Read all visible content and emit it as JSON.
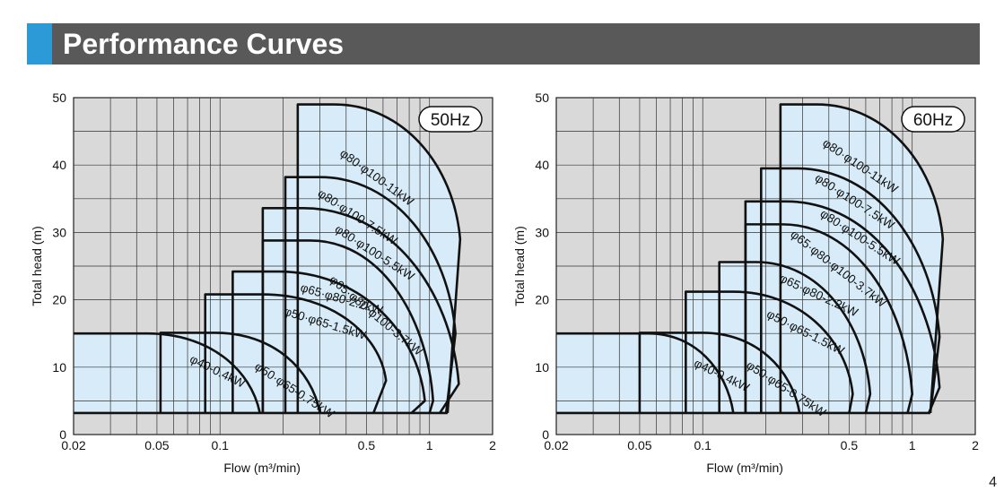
{
  "header": {
    "title": "Performance Curves"
  },
  "colors": {
    "plot_bg": "#d9d9d9",
    "region_fill": "#d7ecf8",
    "curve": "#111111",
    "accent": "#2b9ad6",
    "title_bar": "#595959"
  },
  "page_number": "4",
  "chart_data": [
    {
      "type": "area",
      "freq_label": "50Hz",
      "xlabel": "Flow (m³/min)",
      "ylabel": "Total head (m)",
      "x_scale": "log",
      "xlim": [
        0.02,
        2
      ],
      "ylim": [
        0,
        50
      ],
      "x_ticks": [
        0.02,
        0.05,
        0.1,
        0.5,
        1,
        2
      ],
      "x_tick_labels": [
        "0.02",
        "0.05",
        "0.1",
        "0.5",
        "1",
        "2"
      ],
      "y_ticks": [
        0,
        10,
        20,
        30,
        40,
        50
      ],
      "grid": true,
      "min_head": 3.2,
      "series": [
        {
          "name": "φ40-0.4kW",
          "label_pos": [
            0.071,
            10.8
          ],
          "label_rot": 26,
          "x_start": 0.02,
          "x_vert": null,
          "h_top": 15.0,
          "x_q": 0.045,
          "x_end": 0.155,
          "shape": "arc",
          "kink": null
        },
        {
          "name": "φ50·φ65-0.75kW",
          "label_pos": [
            0.145,
            9.8
          ],
          "label_rot": 33,
          "x_start": 0.052,
          "x_vert": 0.052,
          "h_top": 15.1,
          "x_q": 0.095,
          "x_end": 0.3,
          "shape": "arc",
          "kink": null
        },
        {
          "name": "φ50·φ65-1.5kW",
          "label_pos": [
            0.2,
            17.8
          ],
          "label_rot": 17,
          "x_start": 0.085,
          "x_vert": 0.085,
          "h_top": 20.8,
          "x_q": 0.16,
          "x_end": 0.54,
          "shape": "kink",
          "kink": [
            0.62,
            8.0
          ]
        },
        {
          "name": "φ65·φ80-2.2kW",
          "label_pos": [
            0.24,
            21.3
          ],
          "label_rot": 16,
          "x_start": 0.115,
          "x_vert": 0.115,
          "h_top": 24.2,
          "x_q": 0.19,
          "x_end": 0.82,
          "shape": "kink",
          "kink": [
            0.95,
            5.0
          ]
        },
        {
          "name": "φ65·φ80·φ100-3.7kW",
          "label_pos": [
            0.33,
            22.8
          ],
          "label_rot": 40,
          "x_start": 0.16,
          "x_vert": 0.16,
          "h_top": 28.8,
          "x_q": 0.27,
          "x_end": 1.0,
          "shape": "kink",
          "kink": [
            1.04,
            5.0
          ]
        },
        {
          "name": "φ80·φ100-5.5kW",
          "label_pos": [
            0.35,
            30.2
          ],
          "label_rot": 33,
          "x_start": 0.16,
          "x_vert": 0.16,
          "h_top": 33.6,
          "x_q": 0.25,
          "x_end": 1.12,
          "shape": "notch",
          "kink": [
            1.38,
            7.5
          ]
        },
        {
          "name": "φ80·φ100-7.5kW",
          "label_pos": [
            0.29,
            35.5
          ],
          "label_rot": 33,
          "x_start": 0.205,
          "x_vert": 0.205,
          "h_top": 38.2,
          "x_q": 0.3,
          "x_end": 1.2,
          "shape": "notch",
          "kink": [
            1.33,
            15.0
          ]
        },
        {
          "name": "φ80·φ100-11kW",
          "label_pos": [
            0.37,
            41.5
          ],
          "label_rot": 36,
          "x_start": 0.235,
          "x_vert": 0.235,
          "h_top": 49.0,
          "x_q": 0.35,
          "x_end": 1.22,
          "shape": "notch",
          "kink": [
            1.4,
            29.0
          ]
        }
      ]
    },
    {
      "type": "area",
      "freq_label": "60Hz",
      "xlabel": "Flow (m³/min)",
      "ylabel": "Total head (m)",
      "x_scale": "log",
      "xlim": [
        0.02,
        2
      ],
      "ylim": [
        0,
        50
      ],
      "x_ticks": [
        0.02,
        0.05,
        0.1,
        0.5,
        1,
        2
      ],
      "x_tick_labels": [
        "0.02",
        "0.05",
        "0.1",
        "0.5",
        "1",
        "2"
      ],
      "y_ticks": [
        0,
        10,
        20,
        30,
        40,
        50
      ],
      "grid": true,
      "min_head": 3.2,
      "series": [
        {
          "name": "φ40-0.4kW",
          "label_pos": [
            0.09,
            10.2
          ],
          "label_rot": 26,
          "x_start": 0.02,
          "x_vert": null,
          "h_top": 15.0,
          "x_q": 0.055,
          "x_end": 0.14,
          "shape": "arc",
          "kink": null
        },
        {
          "name": "φ50·φ65-0.75kW",
          "label_pos": [
            0.16,
            10.0
          ],
          "label_rot": 33,
          "x_start": 0.05,
          "x_vert": 0.05,
          "h_top": 15.1,
          "x_q": 0.1,
          "x_end": 0.29,
          "shape": "arc",
          "kink": null
        },
        {
          "name": "φ50·φ65-1.5kW",
          "label_pos": [
            0.2,
            17.5
          ],
          "label_rot": 27,
          "x_start": 0.083,
          "x_vert": 0.083,
          "h_top": 21.2,
          "x_q": 0.14,
          "x_end": 0.5,
          "shape": "kink",
          "kink": [
            0.52,
            6.0
          ]
        },
        {
          "name": "φ65·φ80-2.2kW",
          "label_pos": [
            0.23,
            22.8
          ],
          "label_rot": 25,
          "x_start": 0.12,
          "x_vert": 0.12,
          "h_top": 25.6,
          "x_q": 0.18,
          "x_end": 0.6,
          "shape": "kink",
          "kink": [
            0.63,
            6.0
          ]
        },
        {
          "name": "φ65·φ80·φ100-3.7kW",
          "label_pos": [
            0.26,
            29.5
          ],
          "label_rot": 38,
          "x_start": 0.16,
          "x_vert": 0.16,
          "h_top": 31.2,
          "x_q": 0.24,
          "x_end": 0.95,
          "shape": "kink",
          "kink": [
            1.0,
            6.0
          ]
        },
        {
          "name": "φ80·φ100-5.5kW",
          "label_pos": [
            0.36,
            32.5
          ],
          "label_rot": 33,
          "x_start": 0.16,
          "x_vert": 0.16,
          "h_top": 34.6,
          "x_q": 0.25,
          "x_end": 1.2,
          "shape": "notch",
          "kink": [
            1.35,
            7.0
          ]
        },
        {
          "name": "φ80·φ100-7.5kW",
          "label_pos": [
            0.34,
            37.8
          ],
          "label_rot": 33,
          "x_start": 0.19,
          "x_vert": 0.19,
          "h_top": 39.5,
          "x_q": 0.28,
          "x_end": 1.22,
          "shape": "notch",
          "kink": [
            1.35,
            14.5
          ]
        },
        {
          "name": "φ80·φ100-11kW",
          "label_pos": [
            0.37,
            43.0
          ],
          "label_rot": 34,
          "x_start": 0.235,
          "x_vert": 0.235,
          "h_top": 49.0,
          "x_q": 0.35,
          "x_end": 1.22,
          "shape": "notch",
          "kink": [
            1.4,
            29.0
          ]
        }
      ]
    }
  ]
}
